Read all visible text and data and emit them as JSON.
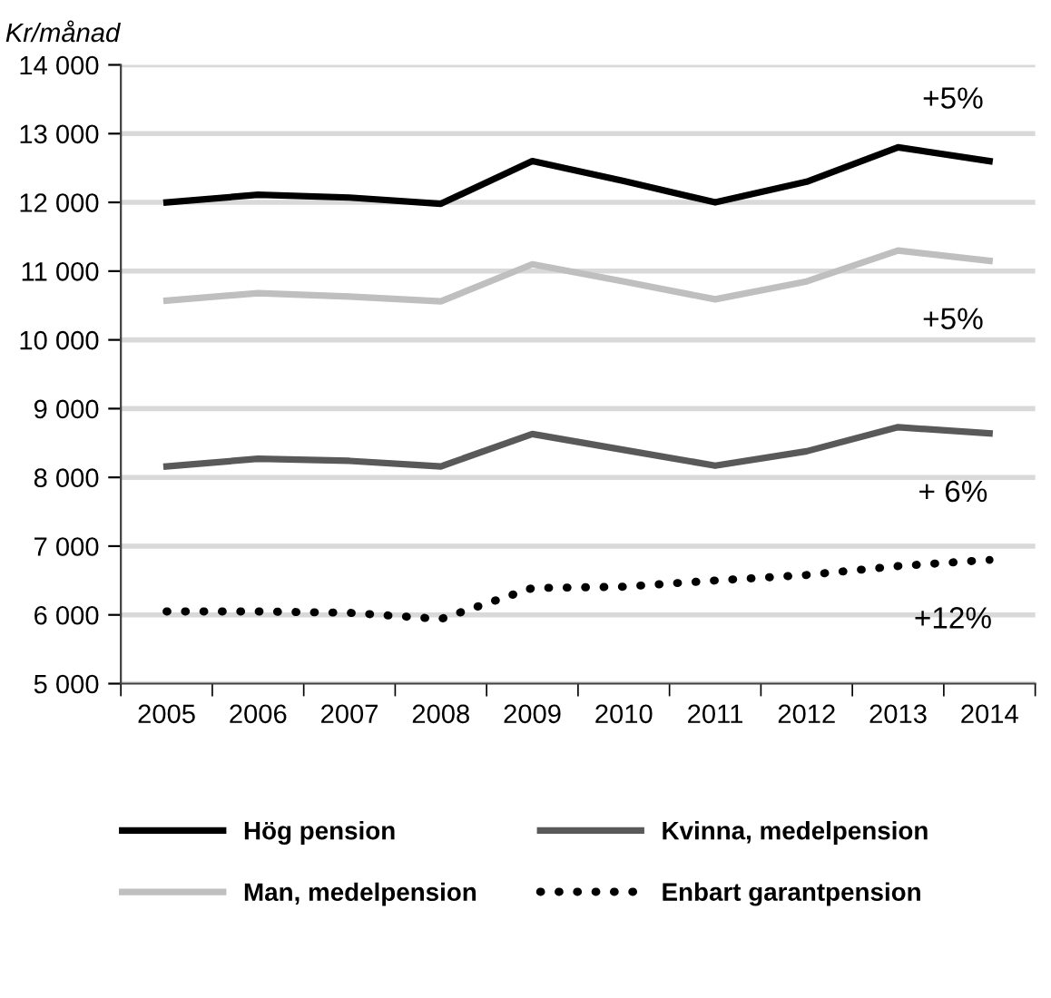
{
  "chart_data": {
    "type": "line",
    "ylabel": "Kr/månad",
    "categories": [
      "2005",
      "2006",
      "2007",
      "2008",
      "2009",
      "2010",
      "2011",
      "2012",
      "2013",
      "2014"
    ],
    "series": [
      {
        "name": "Hög pension",
        "color": "#000000",
        "values": [
          12000,
          12110,
          12070,
          11980,
          12600,
          12310,
          12000,
          12300,
          12800,
          12600
        ]
      },
      {
        "name": "Man, medelpension",
        "color": "#bfbfbf",
        "values": [
          10570,
          10680,
          10630,
          10560,
          11100,
          10850,
          10590,
          10850,
          11300,
          11150
        ]
      },
      {
        "name": "Kvinna, medelpension",
        "color": "#595959",
        "values": [
          8160,
          8270,
          8240,
          8160,
          8630,
          8400,
          8170,
          8380,
          8730,
          8640
        ]
      },
      {
        "name": "Enbart garantpension",
        "color": "#000000",
        "line_style": "dotted",
        "values": [
          6050,
          6050,
          6030,
          5940,
          6390,
          6410,
          6500,
          6580,
          6710,
          6800
        ]
      }
    ],
    "ylim": [
      5000,
      14000
    ],
    "yticks": [
      {
        "value": 5000,
        "label": "5 000"
      },
      {
        "value": 6000,
        "label": "6 000"
      },
      {
        "value": 7000,
        "label": "7 000"
      },
      {
        "value": 8000,
        "label": "8 000"
      },
      {
        "value": 9000,
        "label": "9 000"
      },
      {
        "value": 10000,
        "label": "10 000"
      },
      {
        "value": 11000,
        "label": "11 000"
      },
      {
        "value": 12000,
        "label": "12 000"
      },
      {
        "value": 13000,
        "label": "13 000"
      },
      {
        "value": 14000,
        "label": "14 000"
      }
    ],
    "grid": "y",
    "legend": "bottom",
    "line_style": "solid",
    "marker": "none",
    "annotations": [
      "+5%",
      "+5%",
      "+ 6%",
      "+12%"
    ]
  }
}
